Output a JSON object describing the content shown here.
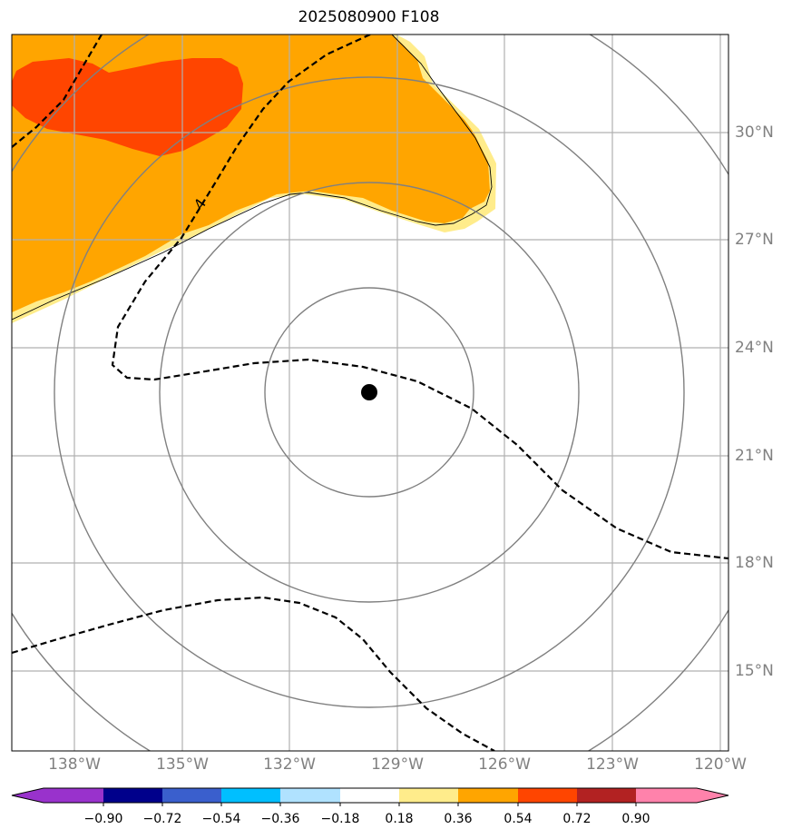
{
  "title": "2025080900 F108",
  "map": {
    "lon_ticks": [
      "138°W",
      "135°W",
      "132°W",
      "129°W",
      "126°W",
      "123°W",
      "120°W"
    ],
    "lat_ticks": [
      "30°N",
      "27°N",
      "24°N",
      "21°N",
      "18°N",
      "15°N"
    ],
    "contour_label": "4",
    "storm_center": {
      "lat": 22.8,
      "lon": "129.7°W"
    },
    "range_rings": 4
  },
  "colorbar": {
    "tick_labels": [
      "−0.90",
      "−0.72",
      "−0.54",
      "−0.36",
      "−0.18",
      "0.18",
      "0.36",
      "0.54",
      "0.72",
      "0.90"
    ],
    "colors": [
      "#9932cc",
      "#00008b",
      "#3a5fcd",
      "#00bfff",
      "#b0e2ff",
      "#ffffff",
      "#ffec8b",
      "#ffa500",
      "#ff4500",
      "#b22222",
      "#ff82ab"
    ]
  }
}
